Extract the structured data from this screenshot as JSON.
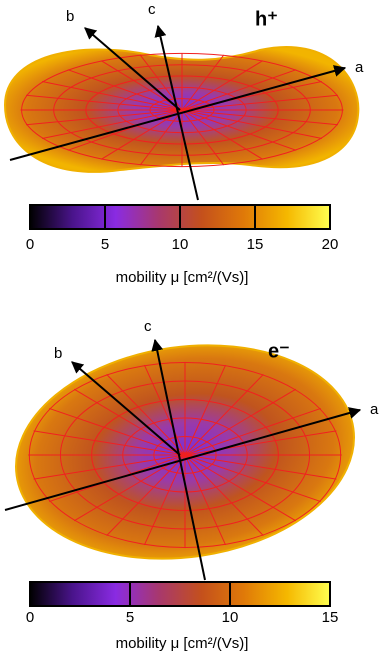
{
  "chart_data": [
    {
      "type": "surface",
      "title": "h⁺",
      "axis_labels": [
        "a",
        "b",
        "c"
      ],
      "colorbar": {
        "label": "mobility μ [cm²/(Vs)]",
        "lim": [
          0,
          20
        ],
        "ticks": [
          0,
          5,
          10,
          15,
          20
        ],
        "colors": [
          "#000000",
          "#4a148c",
          "#8a2be2",
          "#a8386e",
          "#c4501c",
          "#e07a08",
          "#f5b800",
          "#ffff50"
        ]
      }
    },
    {
      "type": "surface",
      "title": "e⁻",
      "axis_labels": [
        "a",
        "b",
        "c"
      ],
      "colorbar": {
        "label": "mobility μ [cm²/(Vs)]",
        "lim": [
          0,
          15
        ],
        "ticks": [
          0,
          5,
          10,
          15
        ],
        "colors": [
          "#000000",
          "#4a148c",
          "#8a2be2",
          "#a8386e",
          "#c4501c",
          "#e07a08",
          "#f5b800",
          "#ffff50"
        ]
      }
    }
  ]
}
